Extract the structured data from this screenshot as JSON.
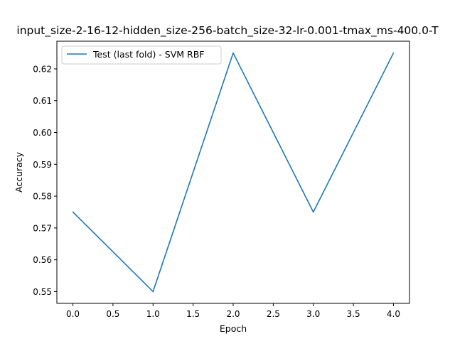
{
  "chart_data": {
    "type": "line",
    "title": "input_size-2-16-12-hidden_size-256-batch_size-32-lr-0.001-tmax_ms-400.0-T",
    "xlabel": "Epoch",
    "ylabel": "Accuracy",
    "x": [
      0,
      1,
      2,
      3,
      4
    ],
    "series": [
      {
        "name": "Test (last fold) - SVM RBF",
        "values": [
          0.575,
          0.55,
          0.625,
          0.575,
          0.625
        ],
        "color": "#1f77b4"
      }
    ],
    "xlim": [
      -0.2,
      4.2
    ],
    "ylim": [
      0.5463,
      0.6287
    ],
    "xticks": [
      0.0,
      0.5,
      1.0,
      1.5,
      2.0,
      2.5,
      3.0,
      3.5,
      4.0
    ],
    "xtick_labels": [
      "0.0",
      "0.5",
      "1.0",
      "1.5",
      "2.0",
      "2.5",
      "3.0",
      "3.5",
      "4.0"
    ],
    "yticks": [
      0.55,
      0.56,
      0.57,
      0.58,
      0.59,
      0.6,
      0.61,
      0.62
    ],
    "ytick_labels": [
      "0.55",
      "0.56",
      "0.57",
      "0.58",
      "0.59",
      "0.60",
      "0.61",
      "0.62"
    ],
    "grid": false,
    "legend_position": "top-left"
  }
}
